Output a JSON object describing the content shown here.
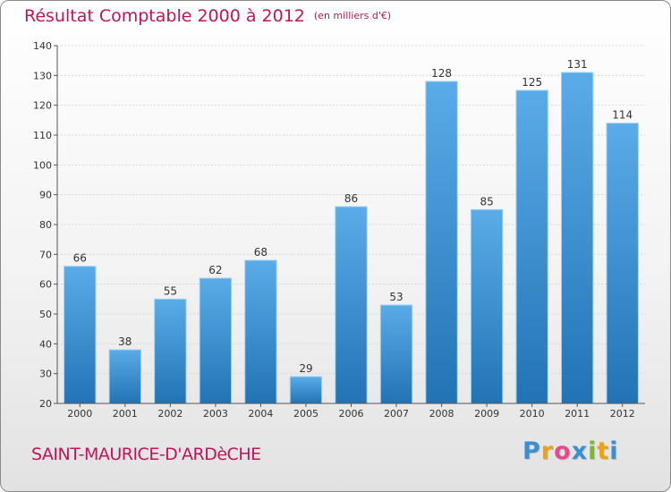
{
  "header": {
    "title": "Résultat Comptable 2000 à 2012",
    "unit": "(en milliers d'€)"
  },
  "footer": {
    "city": "SAINT-MAURICE-D'ARDèCHE",
    "logo": {
      "letters": [
        "P",
        "r",
        "o",
        "x",
        "i",
        "t",
        "i"
      ],
      "colors": [
        "#3a8fd0",
        "#e8a317",
        "#e64a8a",
        "#3a8fd0",
        "#7ab828",
        "#e8a317",
        "#3a8fd0"
      ]
    }
  },
  "colors": {
    "title": "#c0145a",
    "bar_light": "#5aace8",
    "bar_dark": "#2273b4",
    "grid": "#d7d7d7",
    "axis": "#555555"
  },
  "chart_data": {
    "type": "bar",
    "title": "Résultat Comptable 2000 à 2012",
    "subtitle": "(en milliers d'€)",
    "categories": [
      "2000",
      "2001",
      "2002",
      "2003",
      "2004",
      "2005",
      "2006",
      "2007",
      "2008",
      "2009",
      "2010",
      "2011",
      "2012"
    ],
    "values": [
      66,
      38,
      55,
      62,
      68,
      29,
      86,
      53,
      128,
      85,
      125,
      131,
      114
    ],
    "ylim": [
      20,
      140
    ],
    "yticks": [
      20,
      30,
      40,
      50,
      60,
      70,
      80,
      90,
      100,
      110,
      120,
      130,
      140
    ],
    "grid": true,
    "data_labels": true,
    "legend": "none"
  }
}
